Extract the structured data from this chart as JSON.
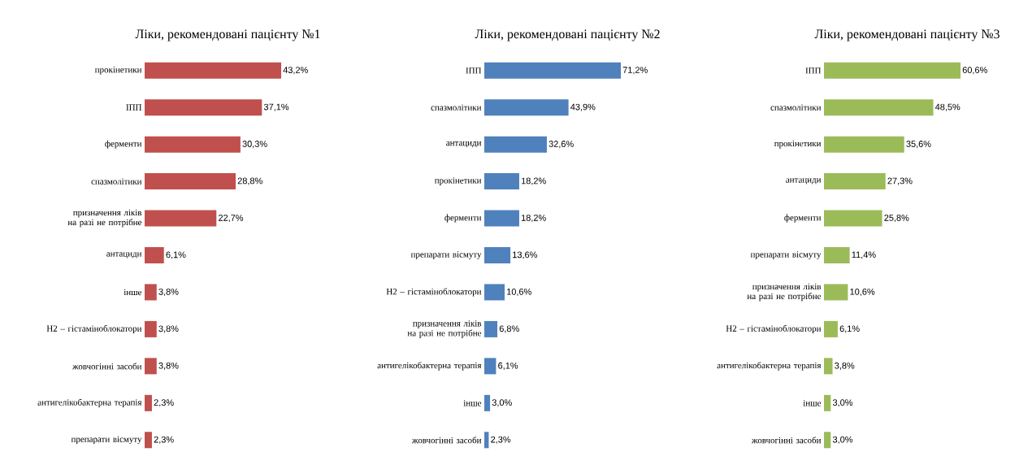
{
  "chart_data": [
    {
      "type": "bar",
      "orientation": "horizontal",
      "title": "Ліки, рекомендовані пацієнту №1",
      "color": "#c0504d",
      "categories": [
        "прокінетики",
        "ІПП",
        "ферменти",
        "спазмолітики",
        "призначення ліків на разі не потрібне",
        "антациди",
        "інше",
        "Н2 – гістаміноблокатори",
        "жовчогінні засоби",
        "антигелікобактерна терапія",
        "препарати вісмуту"
      ],
      "values": [
        43.2,
        37.1,
        30.3,
        28.8,
        22.7,
        6.1,
        3.8,
        3.8,
        3.8,
        2.3,
        2.3
      ],
      "value_labels": [
        "43,2%",
        "37,1%",
        "30,3%",
        "28,8%",
        "22,7%",
        "6,1%",
        "3,8%",
        "3,8%",
        "3,8%",
        "2,3%",
        "2,3%"
      ]
    },
    {
      "type": "bar",
      "orientation": "horizontal",
      "title": "Ліки, рекомендовані пацієнту №2",
      "color": "#4f81bd",
      "categories": [
        "ІПП",
        "спазмолітики",
        "антациди",
        "прокінетики",
        "ферменти",
        "препарати вісмуту",
        "Н2 – гістаміноблокатори",
        "призначення ліків на разі не потрібне",
        "антигелікобактерна терапія",
        "інше",
        "жовчогінні засоби"
      ],
      "values": [
        71.2,
        43.9,
        32.6,
        18.2,
        18.2,
        13.6,
        10.6,
        6.8,
        6.1,
        3.0,
        2.3
      ],
      "value_labels": [
        "71,2%",
        "43,9%",
        "32,6%",
        "18,2%",
        "18,2%",
        "13,6%",
        "10,6%",
        "6,8%",
        "6,1%",
        "3,0%",
        "2,3%"
      ]
    },
    {
      "type": "bar",
      "orientation": "horizontal",
      "title": "Ліки, рекомендовані пацієнту №3",
      "color": "#9bbb59",
      "categories": [
        "ІПП",
        "спазмолітики",
        "прокінетики",
        "антациди",
        "ферменти",
        "препарати вісмуту",
        "призначення ліків на разі не потрібне",
        "Н2 – гістаміноблокатори",
        "антигелікобактерна терапія",
        "інше",
        "жовчогінні засоби"
      ],
      "values": [
        60.6,
        48.5,
        35.6,
        27.3,
        25.8,
        11.4,
        10.6,
        6.1,
        3.8,
        3.0,
        3.0
      ],
      "value_labels": [
        "60,6%",
        "48,5%",
        "35,6%",
        "27,3%",
        "25,8%",
        "11,4%",
        "10,6%",
        "6,1%",
        "3,8%",
        "3,0%",
        "3,0%"
      ]
    }
  ]
}
